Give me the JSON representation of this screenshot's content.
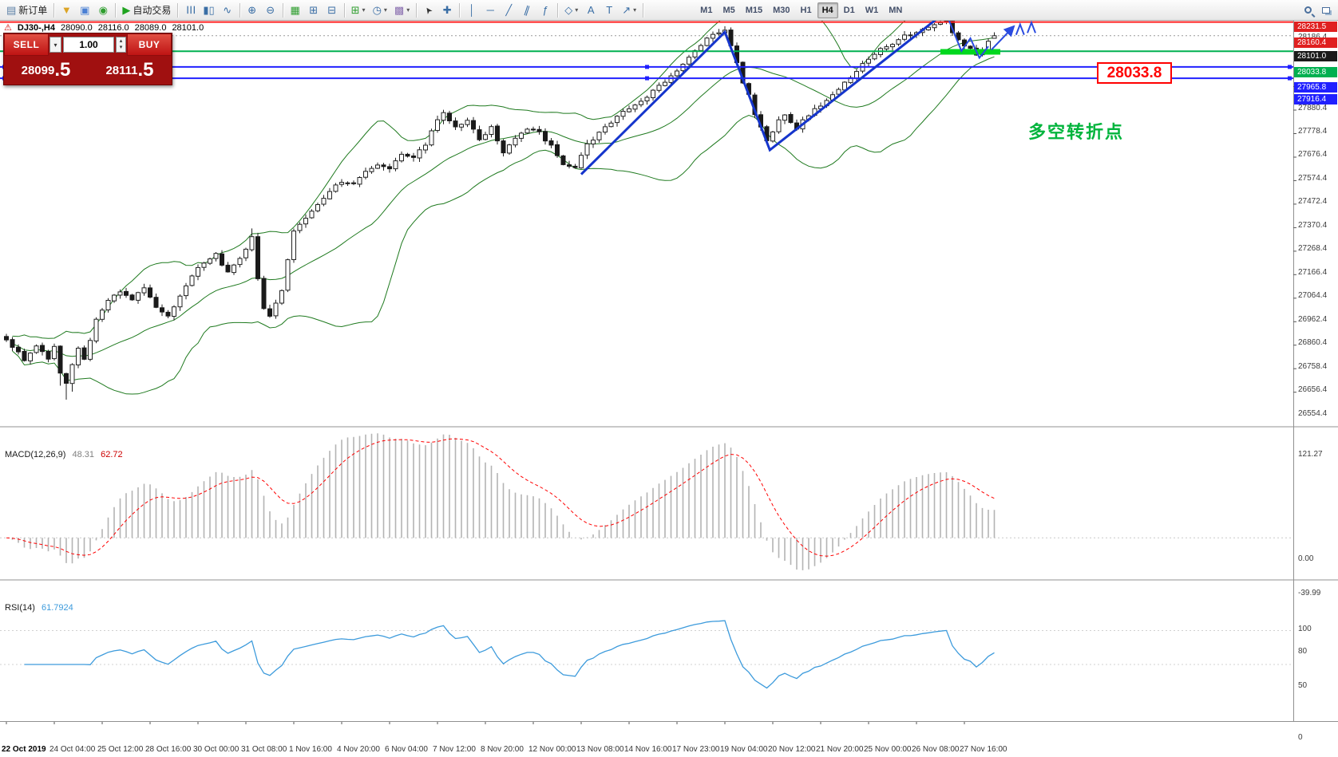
{
  "toolbar": {
    "items": [
      {
        "name": "new-order-button",
        "label": "新订单"
      },
      {
        "name": "separator"
      },
      {
        "name": "funnel-button"
      },
      {
        "name": "accounts-button"
      },
      {
        "name": "refresh-button"
      },
      {
        "name": "separator"
      },
      {
        "name": "autotrading-button",
        "label": "自动交易"
      },
      {
        "name": "separator"
      },
      {
        "name": "bar-chart-button"
      },
      {
        "name": "candle-chart-button"
      },
      {
        "name": "line-chart-button"
      },
      {
        "name": "separator"
      },
      {
        "name": "zoom-in-button"
      },
      {
        "name": "zoom-out-button"
      },
      {
        "name": "separator"
      },
      {
        "name": "profiles-button"
      },
      {
        "name": "tile-windows-button"
      },
      {
        "name": "cascade-windows-button"
      },
      {
        "name": "separator"
      },
      {
        "name": "new-chart-button",
        "caret": true
      },
      {
        "name": "period-button",
        "caret": true
      },
      {
        "name": "template-button",
        "caret": true
      },
      {
        "name": "separator"
      },
      {
        "name": "cursor-button"
      },
      {
        "name": "crosshair-button"
      },
      {
        "name": "separator"
      },
      {
        "name": "vertical-line-button"
      },
      {
        "name": "horizontal-line-button"
      },
      {
        "name": "trendline-button"
      },
      {
        "name": "channel-button"
      },
      {
        "name": "fibonacci-button"
      },
      {
        "name": "separator"
      },
      {
        "name": "shapes-button",
        "caret": true
      },
      {
        "name": "text-button"
      },
      {
        "name": "label-button"
      },
      {
        "name": "arrows-button",
        "caret": true
      },
      {
        "name": "separator"
      },
      {
        "name": "spacer"
      },
      {
        "name": "timeframes"
      },
      {
        "name": "flex"
      },
      {
        "name": "search-button"
      },
      {
        "name": "windows-button"
      }
    ],
    "timeframes": [
      "M1",
      "M5",
      "M15",
      "M30",
      "H1",
      "H4",
      "D1",
      "W1",
      "MN"
    ],
    "active_timeframe": "H4"
  },
  "chart": {
    "symbol_info": {
      "symbol": "DJ30-,H4",
      "open": "28090.0",
      "high": "28116.0",
      "low": "28089.0",
      "close": "28101.0"
    },
    "trade_panel": {
      "sell_label": "SELL",
      "buy_label": "BUY",
      "volume": "1.00",
      "sell_price_main": "28099",
      "sell_price_pips": ".5",
      "buy_price_main": "28111",
      "buy_price_pips": ".5"
    },
    "annotation_text": "多空转折点",
    "callout_price": "28033.8",
    "last_price": 28101.0,
    "colors": {
      "bollinger": "#1f7a1f",
      "zigzag": "#1535cc",
      "zigzag_tail": "#2a4be0",
      "support_segment": "#00d81e",
      "macd_hist": "#b4b4b4",
      "macd_signal": "#ff0000",
      "rsi_line": "#3d9bdc"
    },
    "hlines": [
      {
        "price": 28231.5,
        "color": "#ff2020",
        "width": 2,
        "handles": false
      },
      {
        "price": 28160.4,
        "color": "#ff2020",
        "width": 2,
        "handles": false
      },
      {
        "price": 28033.8,
        "color": "#00b050",
        "width": 2,
        "handles": false
      },
      {
        "price": 27965.8,
        "color": "#2020ff",
        "width": 2,
        "handles": true
      },
      {
        "price": 27916.4,
        "color": "#2020ff",
        "width": 2,
        "handles": true
      }
    ],
    "level_badges": [
      {
        "price": 28231.5,
        "label": "28231.5",
        "type": "resistance-1",
        "color": "#e02020"
      },
      {
        "price": 28160.4,
        "label": "28160.4",
        "type": "resistance-2",
        "color": "#e02020"
      },
      {
        "price": 28101.0,
        "label": "28101.0",
        "type": "last-price",
        "color": "#1a1a1a"
      },
      {
        "price": 28033.8,
        "label": "28033.8",
        "type": "support",
        "color": "#00b050"
      },
      {
        "price": 27965.8,
        "label": "27965.8",
        "type": "blue-level-1",
        "color": "#2020ff"
      },
      {
        "price": 27916.4,
        "label": "27916.4",
        "type": "blue-level-2",
        "color": "#2020ff"
      }
    ],
    "gray_ticks": [
      28186.4,
      27880.4,
      27778.4,
      27676.4,
      27574.4,
      27472.4,
      27370.4,
      27268.4,
      27166.4,
      27064.4,
      26962.4,
      26860.4,
      26758.4,
      26656.4,
      26554.4
    ]
  },
  "chart_data": {
    "type": "candlestick",
    "symbol": "DJ30-",
    "timeframe": "H4",
    "bar_count": 166,
    "bars_per_label": 8,
    "last_bar_ohlc": [
      28090.0,
      28116.0,
      28089.0,
      28101.0
    ],
    "price_axis": {
      "max": 28256,
      "min": 26408
    },
    "close_anchors": [
      [
        0,
        26780
      ],
      [
        2,
        26730
      ],
      [
        3,
        26690
      ],
      [
        5,
        26760
      ],
      [
        7,
        26700
      ],
      [
        8,
        26750
      ],
      [
        9,
        26640
      ],
      [
        10,
        26600
      ],
      [
        11,
        26680
      ],
      [
        12,
        26740
      ],
      [
        13,
        26700
      ],
      [
        15,
        26870
      ],
      [
        17,
        26950
      ],
      [
        19,
        26990
      ],
      [
        21,
        26960
      ],
      [
        23,
        27010
      ],
      [
        25,
        26920
      ],
      [
        27,
        26890
      ],
      [
        29,
        26970
      ],
      [
        31,
        27060
      ],
      [
        33,
        27120
      ],
      [
        35,
        27150
      ],
      [
        37,
        27070
      ],
      [
        39,
        27130
      ],
      [
        41,
        27230
      ],
      [
        42,
        27050
      ],
      [
        43,
        26920
      ],
      [
        44,
        26880
      ],
      [
        46,
        26990
      ],
      [
        48,
        27260
      ],
      [
        50,
        27310
      ],
      [
        52,
        27370
      ],
      [
        54,
        27430
      ],
      [
        56,
        27470
      ],
      [
        58,
        27460
      ],
      [
        60,
        27510
      ],
      [
        62,
        27540
      ],
      [
        64,
        27530
      ],
      [
        66,
        27590
      ],
      [
        68,
        27570
      ],
      [
        70,
        27630
      ],
      [
        72,
        27740
      ],
      [
        73,
        27770
      ],
      [
        75,
        27700
      ],
      [
        77,
        27730
      ],
      [
        79,
        27650
      ],
      [
        81,
        27700
      ],
      [
        83,
        27600
      ],
      [
        85,
        27650
      ],
      [
        87,
        27700
      ],
      [
        89,
        27680
      ],
      [
        91,
        27620
      ],
      [
        93,
        27540
      ],
      [
        95,
        27530
      ],
      [
        97,
        27630
      ],
      [
        99,
        27680
      ],
      [
        101,
        27720
      ],
      [
        103,
        27780
      ],
      [
        105,
        27800
      ],
      [
        107,
        27840
      ],
      [
        109,
        27880
      ],
      [
        111,
        27930
      ],
      [
        113,
        27980
      ],
      [
        115,
        28040
      ],
      [
        117,
        28090
      ],
      [
        119,
        28120
      ],
      [
        120,
        28130
      ],
      [
        121,
        28060
      ],
      [
        122,
        27990
      ],
      [
        123,
        27900
      ],
      [
        124,
        27850
      ],
      [
        125,
        27760
      ],
      [
        126,
        27700
      ],
      [
        127,
        27640
      ],
      [
        128,
        27690
      ],
      [
        129,
        27730
      ],
      [
        130,
        27760
      ],
      [
        132,
        27700
      ],
      [
        134,
        27760
      ],
      [
        136,
        27800
      ],
      [
        138,
        27850
      ],
      [
        140,
        27900
      ],
      [
        142,
        27950
      ],
      [
        144,
        28000
      ],
      [
        146,
        28040
      ],
      [
        148,
        28070
      ],
      [
        150,
        28100
      ],
      [
        152,
        28120
      ],
      [
        154,
        28140
      ],
      [
        156,
        28160
      ],
      [
        157,
        28162
      ],
      [
        158,
        28120
      ],
      [
        159,
        28085
      ],
      [
        160,
        28050
      ],
      [
        161,
        28040
      ],
      [
        162,
        28020
      ],
      [
        163,
        28035
      ],
      [
        164,
        28080
      ],
      [
        165,
        28101
      ]
    ],
    "special_bars": {
      "9": {
        "low_drop": 40
      },
      "10": {
        "low_drop": 55
      },
      "11": {
        "low_drop": 30
      },
      "41": {
        "high": 27265
      },
      "120": {
        "high": 28142
      },
      "157": {
        "high": 28186.4
      }
    },
    "overlays": {
      "bollinger_period": 20,
      "zigzag_main": [
        [
          96,
          27500
        ],
        [
          120,
          28117
        ],
        [
          127.5,
          27605
        ],
        [
          157,
          28207
        ]
      ],
      "zigzag_tail": [
        [
          157,
          28195
        ],
        [
          159.5,
          28035
        ],
        [
          161,
          28090
        ],
        [
          162.5,
          28005
        ],
        [
          164,
          28055
        ]
      ],
      "arrow": [
        [
          164.5,
          28040
        ],
        [
          168.2,
          28140
        ]
      ],
      "carets": [
        [
          169.3,
          28150
        ],
        [
          171.2,
          28158
        ]
      ],
      "support_segment": {
        "from_bar": 156,
        "to_bar": 166,
        "price": 28031
      }
    },
    "macd": {
      "label": "MACD(12,26,9)",
      "value_main": "48.31",
      "value_signal": "62.72",
      "params": [
        12,
        26,
        9
      ],
      "axis": {
        "max": 128,
        "min": -48
      },
      "ticks": [
        121.27,
        0,
        -39.99
      ]
    },
    "rsi": {
      "label": "RSI(14)",
      "value": "61.7924",
      "period": 14,
      "axis": {
        "max": 124,
        "min": 0
      },
      "ticks": [
        100,
        80,
        50,
        0
      ]
    },
    "time_labels": [
      "22 Oct 2019",
      "24 Oct 04:00",
      "25 Oct 12:00",
      "28 Oct 16:00",
      "30 Oct 00:00",
      "31 Oct 08:00",
      "1 Nov 16:00",
      "4 Nov 20:00",
      "6 Nov 04:00",
      "7 Nov 12:00",
      "8 Nov 20:00",
      "12 Nov 00:00",
      "13 Nov 08:00",
      "14 Nov 16:00",
      "17 Nov 23:00",
      "19 Nov 04:00",
      "20 Nov 12:00",
      "21 Nov 20:00",
      "25 Nov 00:00",
      "26 Nov 08:00",
      "27 Nov 16:00"
    ]
  }
}
